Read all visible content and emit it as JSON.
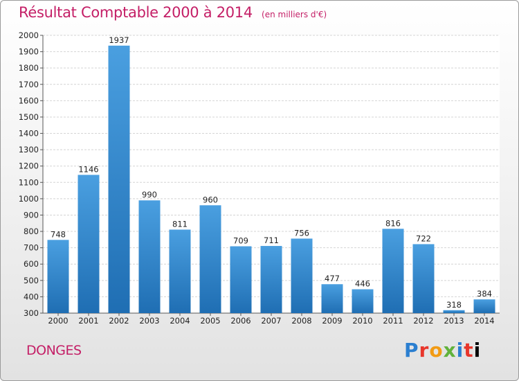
{
  "title": "Résultat Comptable 2000 à 2014",
  "subtitle": "(en milliers d'€)",
  "commune": "DONGES",
  "logo": [
    "P",
    "r",
    "o",
    "x",
    "i",
    "t",
    "i"
  ],
  "colors": {
    "title": "#c41e66",
    "bar": "#4a9fe0",
    "bar_dark": "#1f6eb3"
  },
  "chart_data": {
    "type": "bar",
    "categories": [
      "2000",
      "2001",
      "2002",
      "2003",
      "2004",
      "2005",
      "2006",
      "2007",
      "2008",
      "2009",
      "2010",
      "2011",
      "2012",
      "2013",
      "2014"
    ],
    "values": [
      748,
      1146,
      1937,
      990,
      811,
      960,
      709,
      711,
      756,
      477,
      446,
      816,
      722,
      318,
      384
    ],
    "ylim": [
      300,
      2000
    ],
    "yticks": [
      300,
      400,
      500,
      600,
      700,
      800,
      900,
      1000,
      1100,
      1200,
      1300,
      1400,
      1500,
      1600,
      1700,
      1800,
      1900,
      2000
    ],
    "grid": true
  }
}
